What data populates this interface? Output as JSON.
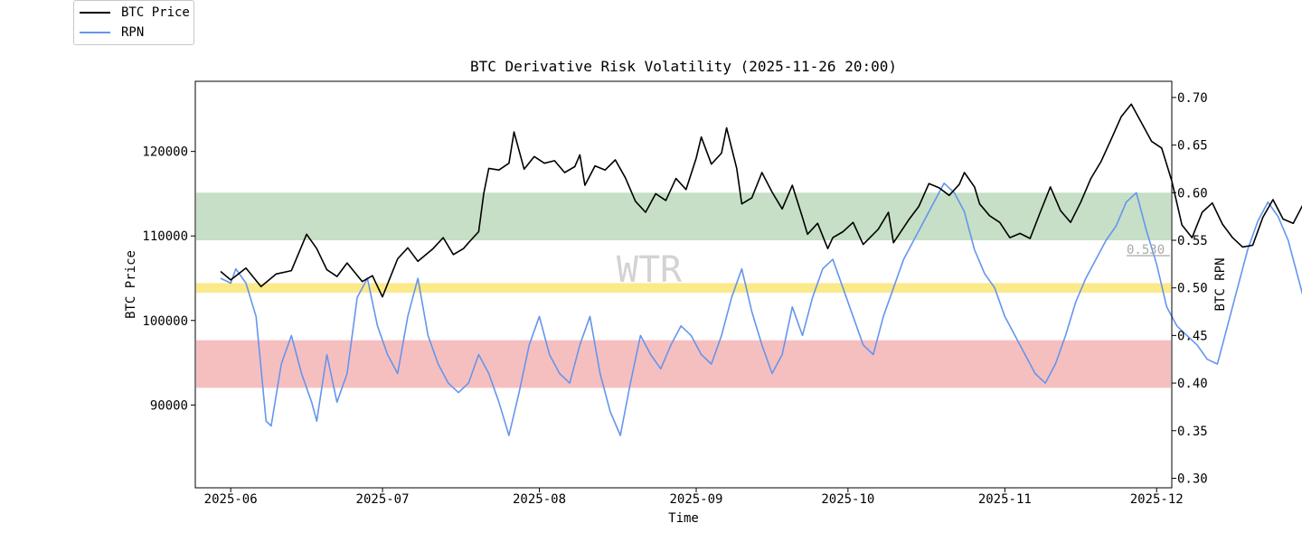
{
  "chart_data": {
    "type": "line",
    "title": "BTC Derivative Risk Volatility (2025-11-26 20:00)",
    "xlabel": "Time",
    "ylabel_left": "BTC Price",
    "ylabel_right": "BTC RPN",
    "watermark": "WTR",
    "x_ticks": [
      "2025-06",
      "2025-07",
      "2025-08",
      "2025-09",
      "2025-10",
      "2025-11",
      "2025-12"
    ],
    "x_tick_days": [
      0,
      30,
      61,
      92,
      122,
      153,
      183
    ],
    "x_range_days": [
      -7,
      186
    ],
    "y_left_ticks": [
      90000,
      100000,
      110000,
      120000
    ],
    "y_left_range": [
      80200,
      128300
    ],
    "y_right_ticks": [
      "0.30",
      "0.35",
      "0.40",
      "0.45",
      "0.50",
      "0.55",
      "0.60",
      "0.65",
      "0.70"
    ],
    "y_right_range": [
      0.29,
      0.717
    ],
    "bands": [
      {
        "name": "high-risk-zone",
        "from": 0.55,
        "to": 0.6,
        "color": "#c6dfc6"
      },
      {
        "name": "mid-line-zone",
        "from": 0.495,
        "to": 0.505,
        "color": "#fbe98a"
      },
      {
        "name": "low-risk-zone",
        "from": 0.395,
        "to": 0.445,
        "color": "#f6bfbf"
      }
    ],
    "current_rpn_label": "0.530",
    "series": [
      {
        "name": "BTC Price",
        "axis": "left",
        "color": "#000000",
        "points": [
          [
            -2,
            105800
          ],
          [
            0,
            104800
          ],
          [
            3,
            106200
          ],
          [
            6,
            104000
          ],
          [
            9,
            105500
          ],
          [
            12,
            105900
          ],
          [
            15,
            110200
          ],
          [
            17,
            108500
          ],
          [
            19,
            106000
          ],
          [
            21,
            105200
          ],
          [
            23,
            106800
          ],
          [
            26,
            104600
          ],
          [
            28,
            105300
          ],
          [
            30,
            102800
          ],
          [
            33,
            107300
          ],
          [
            35,
            108600
          ],
          [
            37,
            107000
          ],
          [
            40,
            108500
          ],
          [
            42,
            109800
          ],
          [
            44,
            107800
          ],
          [
            46,
            108500
          ],
          [
            47,
            109200
          ],
          [
            49,
            110500
          ],
          [
            50,
            115000
          ],
          [
            51,
            118000
          ],
          [
            53,
            117800
          ],
          [
            55,
            118600
          ],
          [
            56,
            122300
          ],
          [
            58,
            117900
          ],
          [
            60,
            119400
          ],
          [
            62,
            118600
          ],
          [
            64,
            118900
          ],
          [
            66,
            117500
          ],
          [
            68,
            118200
          ],
          [
            69,
            119600
          ],
          [
            70,
            116000
          ],
          [
            72,
            118300
          ],
          [
            74,
            117800
          ],
          [
            76,
            119000
          ],
          [
            78,
            116900
          ],
          [
            80,
            114100
          ],
          [
            82,
            112800
          ],
          [
            84,
            115000
          ],
          [
            86,
            114200
          ],
          [
            88,
            116800
          ],
          [
            90,
            115500
          ],
          [
            92,
            119200
          ],
          [
            93,
            121700
          ],
          [
            95,
            118500
          ],
          [
            97,
            119800
          ],
          [
            98,
            122800
          ],
          [
            100,
            118000
          ],
          [
            101,
            113800
          ],
          [
            103,
            114500
          ],
          [
            105,
            117500
          ],
          [
            107,
            115200
          ],
          [
            109,
            113200
          ],
          [
            111,
            116000
          ],
          [
            113,
            112200
          ],
          [
            114,
            110200
          ],
          [
            116,
            111500
          ],
          [
            118,
            108500
          ],
          [
            119,
            109800
          ],
          [
            121,
            110500
          ],
          [
            123,
            111600
          ],
          [
            125,
            109000
          ],
          [
            128,
            110800
          ],
          [
            130,
            112800
          ],
          [
            131,
            109200
          ],
          [
            133,
            111000
          ],
          [
            134,
            111900
          ],
          [
            136,
            113500
          ],
          [
            138,
            116200
          ],
          [
            140,
            115700
          ],
          [
            142,
            114800
          ],
          [
            144,
            116100
          ],
          [
            145,
            117500
          ],
          [
            147,
            115800
          ],
          [
            148,
            113800
          ],
          [
            150,
            112400
          ],
          [
            152,
            111600
          ],
          [
            154,
            109800
          ],
          [
            156,
            110300
          ],
          [
            158,
            109700
          ],
          [
            160,
            112800
          ],
          [
            162,
            115800
          ],
          [
            164,
            113000
          ],
          [
            166,
            111600
          ],
          [
            168,
            114000
          ],
          [
            170,
            116800
          ],
          [
            172,
            118800
          ],
          [
            174,
            121400
          ],
          [
            176,
            124100
          ],
          [
            178,
            125600
          ],
          [
            180,
            123400
          ],
          [
            182,
            121200
          ],
          [
            184,
            120400
          ],
          [
            186,
            116500
          ],
          [
            188,
            111300
          ],
          [
            190,
            109800
          ],
          [
            192,
            112800
          ],
          [
            194,
            113900
          ],
          [
            196,
            111400
          ],
          [
            198,
            109800
          ],
          [
            200,
            108700
          ],
          [
            202,
            108900
          ],
          [
            204,
            112200
          ],
          [
            206,
            114300
          ],
          [
            208,
            112000
          ],
          [
            210,
            111500
          ],
          [
            212,
            113800
          ],
          [
            214,
            115100
          ],
          [
            215,
            113300
          ],
          [
            217,
            111400
          ],
          [
            219,
            109600
          ],
          [
            221,
            109800
          ],
          [
            222,
            106800
          ],
          [
            224,
            104200
          ],
          [
            226,
            101800
          ],
          [
            228,
            99300
          ],
          [
            230,
            100500
          ],
          [
            232,
            103400
          ],
          [
            234,
            104800
          ],
          [
            236,
            105800
          ],
          [
            238,
            104400
          ],
          [
            240,
            101500
          ],
          [
            242,
            99800
          ],
          [
            243,
            96200
          ],
          [
            245,
            95200
          ],
          [
            247,
            93300
          ],
          [
            249,
            93900
          ],
          [
            251,
            91900
          ],
          [
            252,
            89800
          ],
          [
            253,
            89200
          ],
          [
            255,
            86500
          ],
          [
            256,
            84000
          ],
          [
            257,
            82700
          ],
          [
            258,
            84500
          ],
          [
            260,
            86200
          ],
          [
            262,
            86900
          ],
          [
            264,
            88800
          ],
          [
            265,
            87900
          ],
          [
            266,
            87500
          ],
          [
            268,
            87100
          ]
        ]
      },
      {
        "name": "RPN",
        "axis": "right",
        "color": "#6495ed",
        "points": [
          [
            -2,
            0.51
          ],
          [
            0,
            0.505
          ],
          [
            1,
            0.52
          ],
          [
            3,
            0.505
          ],
          [
            5,
            0.47
          ],
          [
            7,
            0.36
          ],
          [
            8,
            0.355
          ],
          [
            10,
            0.42
          ],
          [
            12,
            0.45
          ],
          [
            14,
            0.41
          ],
          [
            16,
            0.38
          ],
          [
            17,
            0.36
          ],
          [
            19,
            0.43
          ],
          [
            21,
            0.38
          ],
          [
            23,
            0.41
          ],
          [
            25,
            0.49
          ],
          [
            27,
            0.51
          ],
          [
            29,
            0.46
          ],
          [
            31,
            0.43
          ],
          [
            33,
            0.41
          ],
          [
            35,
            0.47
          ],
          [
            37,
            0.51
          ],
          [
            39,
            0.45
          ],
          [
            41,
            0.42
          ],
          [
            43,
            0.4
          ],
          [
            45,
            0.39
          ],
          [
            47,
            0.4
          ],
          [
            49,
            0.43
          ],
          [
            51,
            0.41
          ],
          [
            53,
            0.38
          ],
          [
            55,
            0.345
          ],
          [
            57,
            0.39
          ],
          [
            59,
            0.44
          ],
          [
            61,
            0.47
          ],
          [
            63,
            0.43
          ],
          [
            65,
            0.41
          ],
          [
            67,
            0.4
          ],
          [
            69,
            0.44
          ],
          [
            71,
            0.47
          ],
          [
            73,
            0.41
          ],
          [
            75,
            0.37
          ],
          [
            77,
            0.345
          ],
          [
            79,
            0.4
          ],
          [
            81,
            0.45
          ],
          [
            83,
            0.43
          ],
          [
            85,
            0.415
          ],
          [
            87,
            0.44
          ],
          [
            89,
            0.46
          ],
          [
            91,
            0.45
          ],
          [
            93,
            0.43
          ],
          [
            95,
            0.42
          ],
          [
            97,
            0.45
          ],
          [
            99,
            0.49
          ],
          [
            101,
            0.52
          ],
          [
            103,
            0.475
          ],
          [
            105,
            0.44
          ],
          [
            107,
            0.41
          ],
          [
            109,
            0.43
          ],
          [
            111,
            0.48
          ],
          [
            113,
            0.45
          ],
          [
            115,
            0.49
          ],
          [
            117,
            0.52
          ],
          [
            119,
            0.53
          ],
          [
            121,
            0.5
          ],
          [
            123,
            0.47
          ],
          [
            125,
            0.44
          ],
          [
            127,
            0.43
          ],
          [
            129,
            0.47
          ],
          [
            131,
            0.5
          ],
          [
            133,
            0.53
          ],
          [
            135,
            0.55
          ],
          [
            137,
            0.57
          ],
          [
            139,
            0.59
          ],
          [
            141,
            0.61
          ],
          [
            143,
            0.6
          ],
          [
            145,
            0.58
          ],
          [
            147,
            0.54
          ],
          [
            149,
            0.515
          ],
          [
            151,
            0.5
          ],
          [
            153,
            0.47
          ],
          [
            155,
            0.45
          ],
          [
            157,
            0.43
          ],
          [
            159,
            0.41
          ],
          [
            161,
            0.4
          ],
          [
            163,
            0.42
          ],
          [
            165,
            0.45
          ],
          [
            167,
            0.485
          ],
          [
            169,
            0.51
          ],
          [
            171,
            0.53
          ],
          [
            173,
            0.55
          ],
          [
            175,
            0.565
          ],
          [
            177,
            0.59
          ],
          [
            179,
            0.6
          ],
          [
            181,
            0.56
          ],
          [
            183,
            0.525
          ],
          [
            185,
            0.48
          ],
          [
            187,
            0.46
          ],
          [
            189,
            0.45
          ],
          [
            191,
            0.44
          ],
          [
            193,
            0.425
          ],
          [
            195,
            0.42
          ],
          [
            197,
            0.46
          ],
          [
            199,
            0.5
          ],
          [
            201,
            0.54
          ],
          [
            203,
            0.57
          ],
          [
            205,
            0.59
          ],
          [
            207,
            0.575
          ],
          [
            209,
            0.55
          ],
          [
            211,
            0.51
          ],
          [
            213,
            0.47
          ],
          [
            215,
            0.45
          ],
          [
            217,
            0.42
          ],
          [
            219,
            0.405
          ],
          [
            221,
            0.43
          ],
          [
            223,
            0.45
          ],
          [
            225,
            0.47
          ],
          [
            227,
            0.5
          ],
          [
            229,
            0.525
          ],
          [
            231,
            0.54
          ],
          [
            233,
            0.56
          ],
          [
            235,
            0.58
          ],
          [
            237,
            0.59
          ],
          [
            239,
            0.56
          ],
          [
            241,
            0.535
          ],
          [
            243,
            0.52
          ],
          [
            245,
            0.545
          ],
          [
            247,
            0.575
          ],
          [
            249,
            0.58
          ],
          [
            251,
            0.59
          ],
          [
            253,
            0.58
          ],
          [
            255,
            0.575
          ],
          [
            257,
            0.565
          ],
          [
            259,
            0.5
          ],
          [
            260,
            0.495
          ],
          [
            262,
            0.52
          ],
          [
            264,
            0.525
          ],
          [
            266,
            0.53
          ],
          [
            268,
            0.53
          ]
        ]
      }
    ]
  },
  "legend": {
    "items": [
      {
        "label": "BTC Price",
        "color": "#000000"
      },
      {
        "label": "RPN",
        "color": "#6495ed"
      }
    ]
  }
}
